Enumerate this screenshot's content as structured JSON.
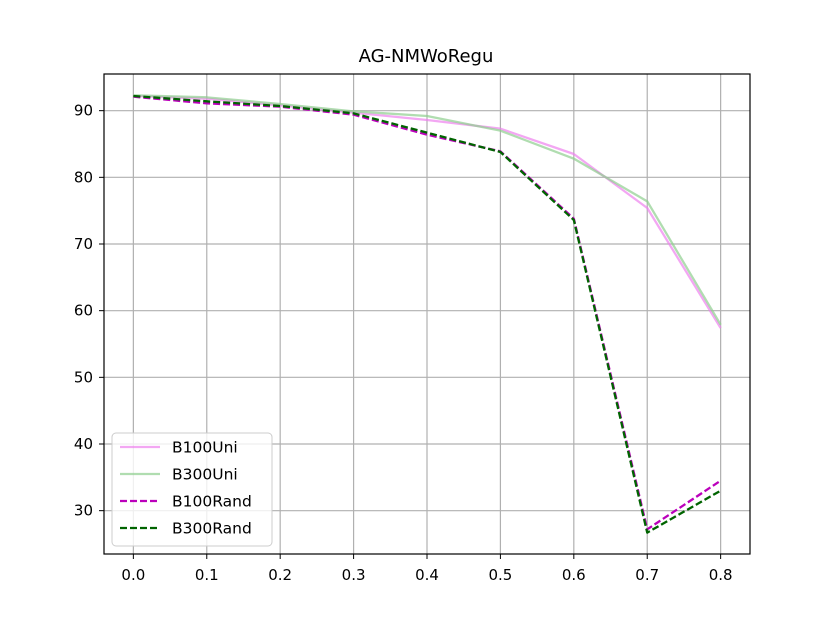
{
  "chart_data": {
    "type": "line",
    "title": "AG-NMWoRegu",
    "xlabel": "",
    "ylabel": "",
    "x": [
      0.0,
      0.1,
      0.2,
      0.3,
      0.4,
      0.5,
      0.6,
      0.7,
      0.8
    ],
    "x_tick_labels": [
      "0.0",
      "0.1",
      "0.2",
      "0.3",
      "0.4",
      "0.5",
      "0.6",
      "0.7",
      "0.8"
    ],
    "y_ticks": [
      30,
      40,
      50,
      60,
      70,
      80,
      90
    ],
    "y_tick_labels": [
      "30",
      "40",
      "50",
      "60",
      "70",
      "80",
      "90"
    ],
    "xlim": [
      -0.04,
      0.84
    ],
    "ylim": [
      23.5,
      95.5
    ],
    "grid": true,
    "legend_position": "lower-left",
    "series": [
      {
        "name": "B100Uni",
        "color": "#ee82ee",
        "dashed": false,
        "opacity": 0.7,
        "values": [
          92.2,
          91.8,
          90.8,
          89.7,
          88.6,
          87.3,
          83.5,
          75.4,
          57.4
        ]
      },
      {
        "name": "B300Uni",
        "color": "#8fce8f",
        "dashed": false,
        "opacity": 0.7,
        "values": [
          92.3,
          92.0,
          91.0,
          89.9,
          89.2,
          87.0,
          82.8,
          76.4,
          57.9
        ]
      },
      {
        "name": "B100Rand",
        "color": "#bb00bb",
        "dashed": true,
        "opacity": 1.0,
        "values": [
          92.1,
          91.1,
          90.6,
          89.4,
          86.4,
          83.9,
          73.8,
          27.2,
          34.5
        ]
      },
      {
        "name": "B300Rand",
        "color": "#006400",
        "dashed": true,
        "opacity": 1.0,
        "values": [
          92.2,
          91.4,
          90.7,
          89.6,
          86.7,
          83.8,
          73.6,
          26.7,
          33.0
        ]
      }
    ]
  }
}
